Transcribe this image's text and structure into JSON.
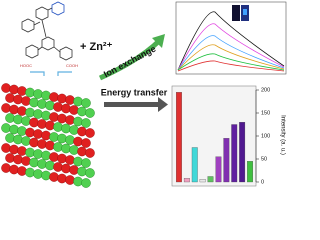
{
  "labels": {
    "zinc": "+ Zn²⁺",
    "ion_exchange": "Ion exchange",
    "energy_transfer": "Energy transfer"
  },
  "chart_data": {
    "type": "bar",
    "ylabel": "Intensity (a. u.)",
    "values": [
      195,
      8,
      75,
      6,
      12,
      55,
      95,
      125,
      130,
      45
    ],
    "colors": [
      "#e03030",
      "#f0a0c0",
      "#40d8d8",
      "#e8e8e8",
      "#60c060",
      "#a040c0",
      "#8030b0",
      "#6020a0",
      "#501890",
      "#40c040"
    ],
    "ylim": [
      0,
      200
    ],
    "yticks": [
      0,
      50,
      100,
      150,
      200
    ]
  }
}
